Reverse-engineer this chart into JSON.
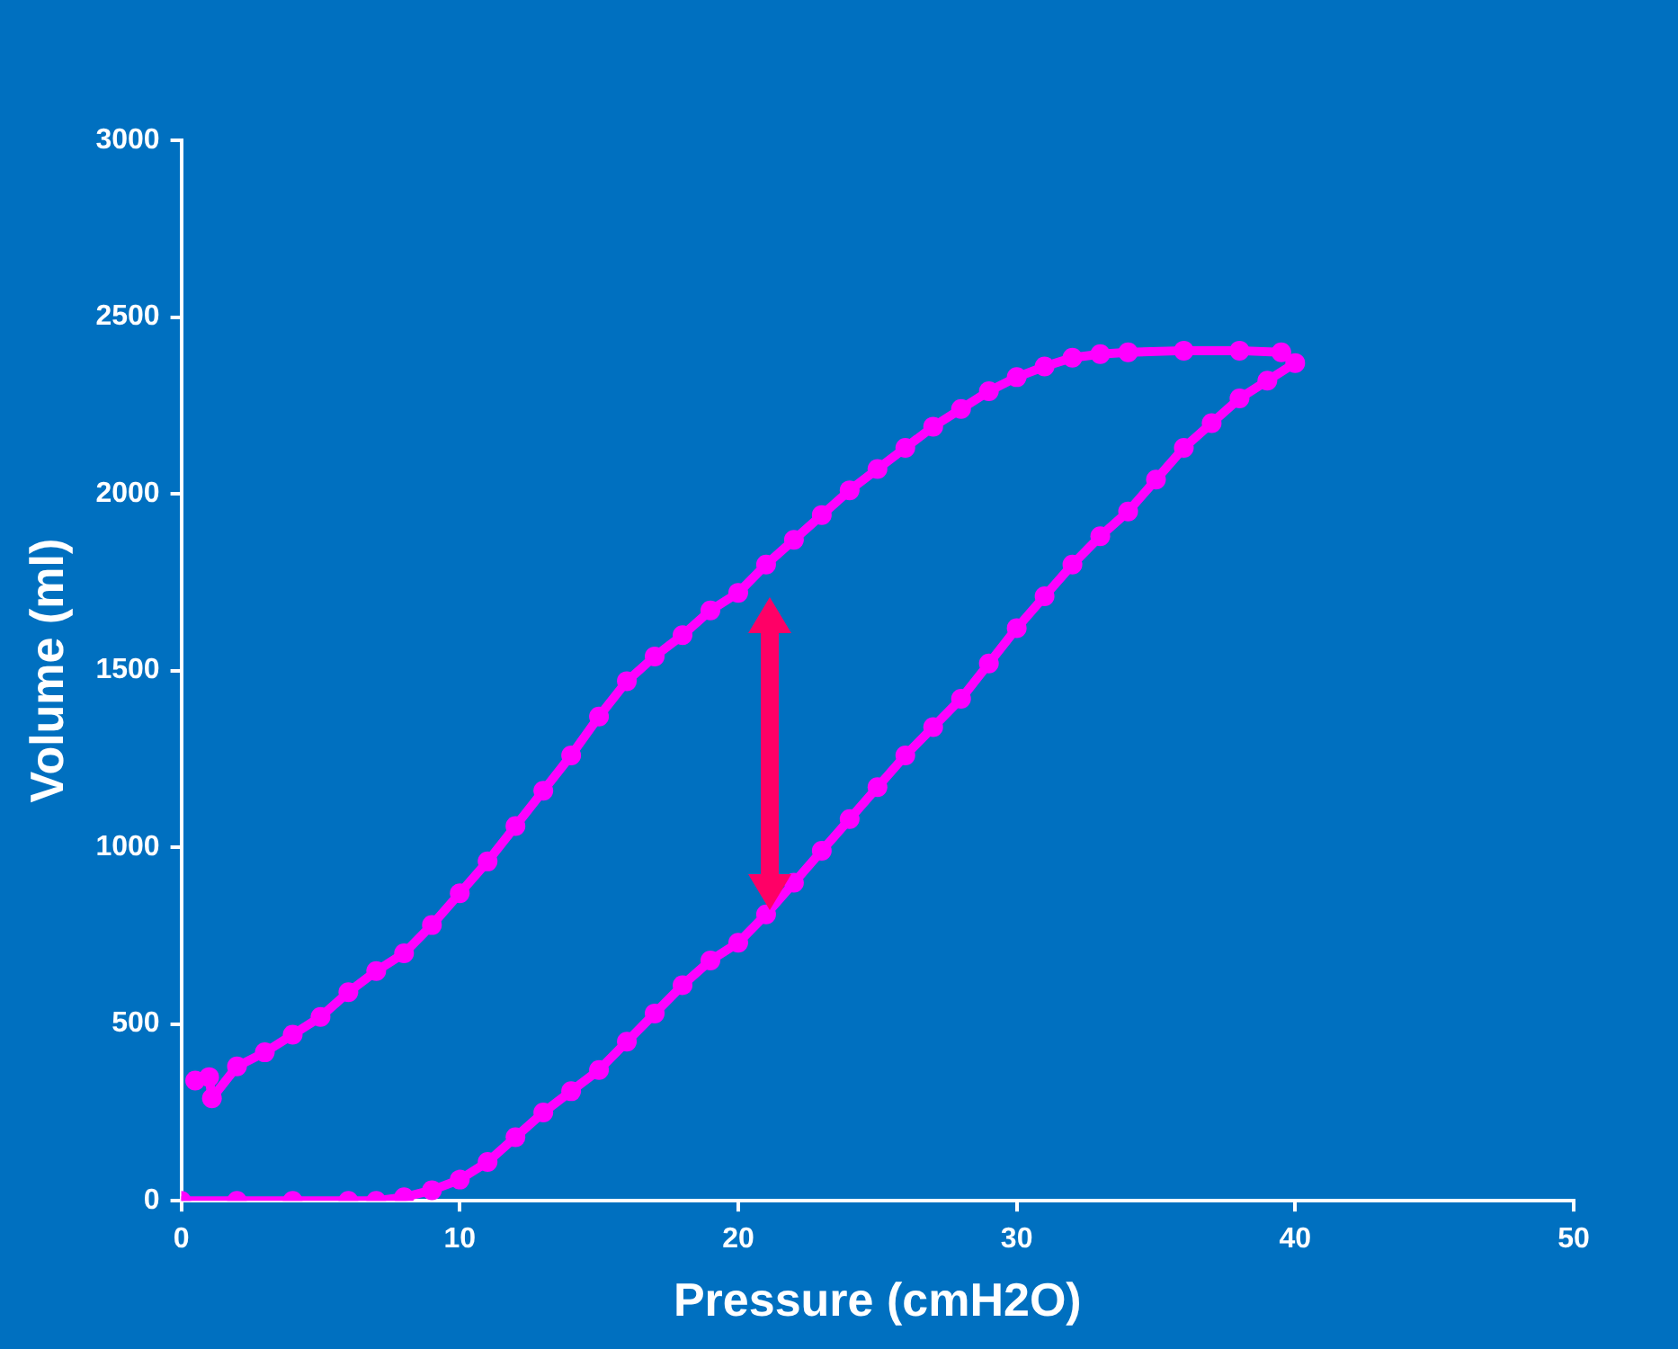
{
  "chart_data": {
    "type": "line",
    "xlabel": "Pressure (cmH2O)",
    "ylabel": "Volume (ml)",
    "xlim": [
      0,
      50
    ],
    "xticks": [
      0,
      10,
      20,
      30,
      40,
      50
    ],
    "ylim": [
      0,
      3000
    ],
    "yticks": [
      0,
      500,
      1000,
      1500,
      2000,
      2500,
      3000
    ],
    "grid": false,
    "legend": false,
    "marker": "circle",
    "line_style": "solid",
    "series": [
      {
        "color": "#ff00ff",
        "x": [
          0,
          2,
          4,
          6,
          7,
          8,
          9,
          10,
          11,
          12,
          13,
          14,
          15,
          16,
          17,
          18,
          19,
          20,
          21,
          22,
          23,
          24,
          25,
          26,
          27,
          28,
          29,
          30,
          31,
          32,
          33,
          34,
          35,
          36,
          37,
          38,
          39,
          40,
          39.5,
          38,
          36,
          34,
          33,
          32,
          31,
          30,
          29,
          28,
          27,
          26,
          25,
          24,
          23,
          22,
          21,
          20,
          19,
          18,
          17,
          16,
          15,
          14,
          13,
          12,
          11,
          10,
          9,
          8,
          7,
          6,
          5,
          4,
          3,
          2,
          1.1,
          1,
          0.5
        ],
        "values": [
          0,
          0,
          0,
          0,
          0,
          10,
          30,
          60,
          110,
          180,
          250,
          310,
          370,
          450,
          530,
          610,
          680,
          730,
          810,
          900,
          990,
          1080,
          1170,
          1260,
          1340,
          1420,
          1520,
          1620,
          1710,
          1800,
          1880,
          1950,
          2040,
          2130,
          2200,
          2270,
          2320,
          2370,
          2400,
          2405,
          2405,
          2400,
          2395,
          2385,
          2360,
          2330,
          2290,
          2240,
          2190,
          2130,
          2070,
          2010,
          1940,
          1870,
          1800,
          1720,
          1670,
          1600,
          1540,
          1470,
          1370,
          1260,
          1160,
          1060,
          960,
          870,
          780,
          700,
          650,
          590,
          520,
          470,
          420,
          380,
          290,
          350,
          340
        ]
      }
    ]
  }
}
